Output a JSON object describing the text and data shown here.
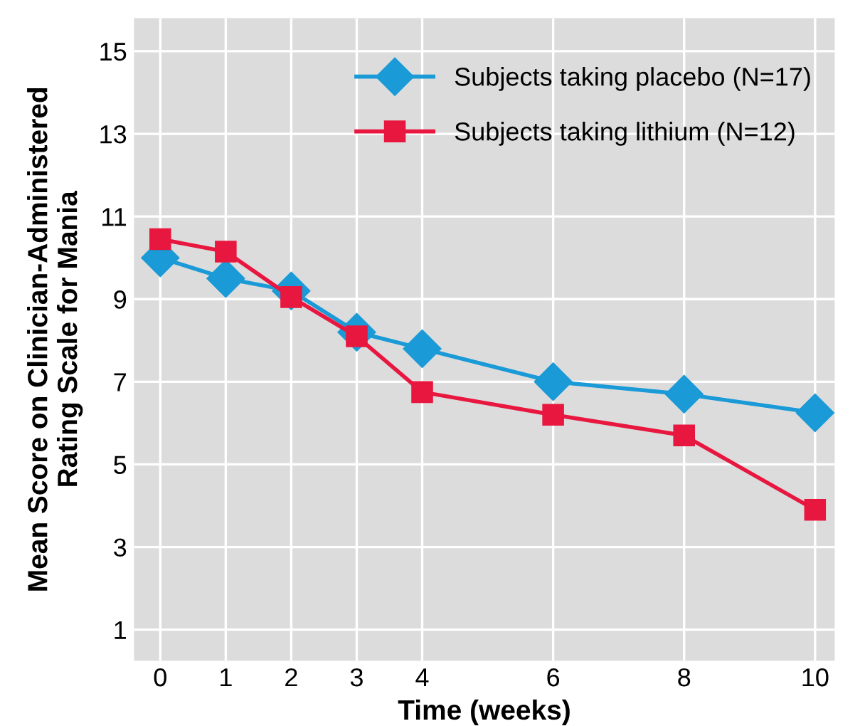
{
  "chart_data": {
    "type": "line",
    "xlabel": "Time (weeks)",
    "ylabel": "Mean Score on Clinician-Administered\nRating Scale for Mania",
    "x": [
      0,
      1,
      2,
      3,
      4,
      6,
      8,
      10
    ],
    "series": [
      {
        "name": "Subjects taking placebo (N=17)",
        "color": "#1a9ad6",
        "marker": "diamond",
        "values": [
          10.0,
          9.5,
          9.2,
          8.2,
          7.8,
          7.0,
          6.7,
          6.25
        ]
      },
      {
        "name": "Subjects taking lithium (N=12)",
        "color": "#e8173f",
        "marker": "square",
        "values": [
          10.45,
          10.15,
          9.05,
          8.1,
          6.75,
          6.2,
          5.7,
          3.9
        ]
      }
    ],
    "xlim": [
      -0.4,
      10.3
    ],
    "ylim": [
      0.25,
      15.8
    ],
    "xticks": [
      0,
      1,
      2,
      3,
      4,
      6,
      8,
      10
    ],
    "yticks": [
      1,
      3,
      5,
      7,
      9,
      11,
      13,
      15
    ],
    "grid": true,
    "legend": "top right",
    "line_style": "solid"
  }
}
